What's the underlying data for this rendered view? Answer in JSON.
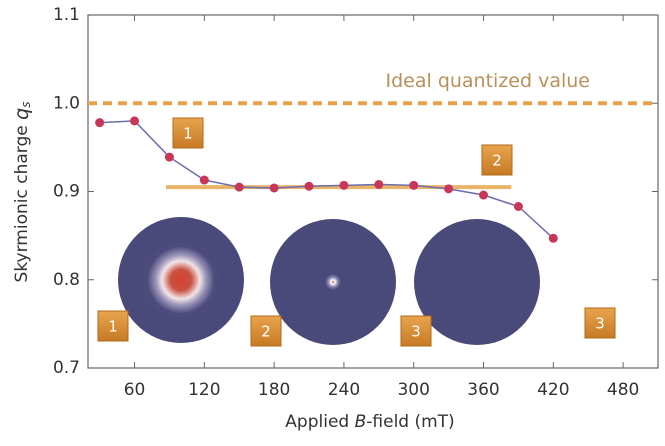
{
  "chart_data": {
    "type": "line",
    "ylabel": "Skyrmionic charge ",
    "ylabel_symbol": "q",
    "ylabel_subscript": "s",
    "xlabel": "Applied ",
    "xlabel_symbol": "B",
    "xlabel_suffix": "-field (mT)",
    "x": [
      30,
      60,
      90,
      120,
      150,
      180,
      210,
      240,
      270,
      300,
      330,
      360,
      390,
      420
    ],
    "series": [
      {
        "color": "#6c6cae",
        "marker_color": "#c8365a",
        "values": [
          0.978,
          0.98,
          0.939,
          0.913,
          0.905,
          0.904,
          0.906,
          0.907,
          0.908,
          0.907,
          0.903,
          0.896,
          0.883,
          0.847
        ]
      }
    ],
    "xlim": [
      20,
      510
    ],
    "ylim": [
      0.7,
      1.1
    ],
    "xticks": [
      60,
      120,
      180,
      240,
      300,
      360,
      420,
      480
    ],
    "yticks": [
      0.7,
      0.8,
      0.9,
      {
        "value": 1.0,
        "label": "1.0"
      },
      1.1
    ],
    "grid": false,
    "hlines": [
      {
        "value": 1.0,
        "label": "Ideal quantized value",
        "color": "#e6a24a",
        "style": "dashed"
      },
      {
        "value": 0.905,
        "x_range": [
          87,
          384
        ],
        "color": "#e9b46a",
        "style": "solid"
      }
    ],
    "curve_labels": [
      "1",
      "2",
      "3"
    ],
    "inset_labels": [
      "1",
      "2",
      "3"
    ]
  }
}
